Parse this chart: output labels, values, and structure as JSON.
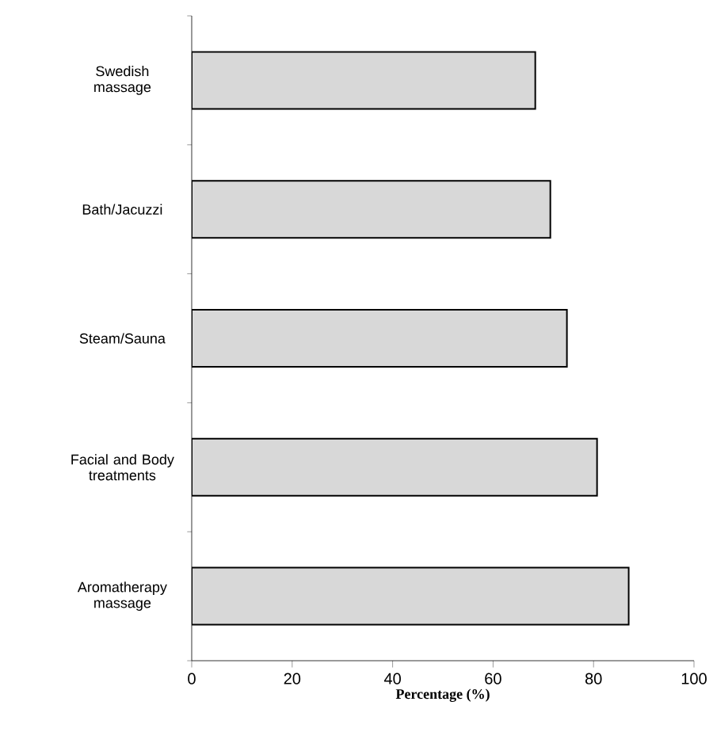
{
  "chart_data": {
    "type": "bar",
    "orientation": "horizontal",
    "categories": [
      "Swedish massage",
      "Bath/Jacuzzi",
      "Steam/Sauna",
      "Facial and Body treatments",
      "Aromatherapy massage"
    ],
    "values": [
      68.4,
      71.4,
      74.7,
      80.7,
      87.0
    ],
    "color": "#d8d8d8",
    "xlabel": "Percentage (%)",
    "xlim": [
      0,
      100
    ],
    "xticks": [
      0,
      20,
      40,
      60,
      80,
      100
    ]
  }
}
